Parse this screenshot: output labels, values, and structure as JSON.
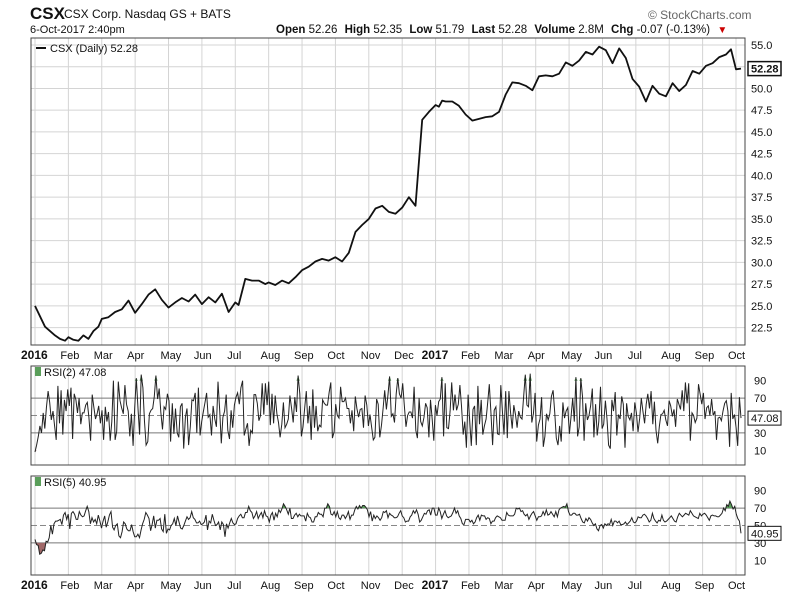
{
  "header": {
    "symbol": "CSX",
    "company": "CSX Corp. Nasdaq GS + BATS",
    "datetime": "6-Oct-2017 2:40pm",
    "brand": "© StockCharts.com",
    "quote": {
      "open_label": "Open",
      "open": "52.26",
      "high_label": "High",
      "high": "52.35",
      "low_label": "Low",
      "low": "51.79",
      "last_label": "Last",
      "last": "52.28",
      "volume_label": "Volume",
      "volume": "2.8M",
      "chg_label": "Chg",
      "chg": "-0.07 (-0.13%)"
    }
  },
  "colors": {
    "overbought": "#5a9e5a",
    "oversold": "#a06868",
    "line": "#111111",
    "grid": "#d4d4d4",
    "down": "#cc0000"
  },
  "chart_data": [
    {
      "type": "line",
      "legend": "CSX (Daily) 52.28",
      "last_label": "52.28",
      "ylim": [
        20.5,
        55.8
      ],
      "yticks": [
        22.5,
        25.0,
        27.5,
        30.0,
        32.5,
        35.0,
        37.5,
        40.0,
        42.5,
        45.0,
        47.5,
        50.0,
        52.5,
        55.0
      ],
      "x_months": [
        "2016",
        "Feb",
        "Mar",
        "Apr",
        "May",
        "Jun",
        "Jul",
        "Aug",
        "Sep",
        "Oct",
        "Nov",
        "Dec",
        "2017",
        "Feb",
        "Mar",
        "Apr",
        "May",
        "Jun",
        "Jul",
        "Aug",
        "Sep",
        "Oct"
      ],
      "x_month_index": [
        0,
        1,
        2,
        3,
        4,
        5,
        6,
        7,
        8,
        9,
        10,
        11,
        12,
        13,
        14,
        15,
        16,
        17,
        18,
        19,
        20,
        21
      ],
      "x": [
        0,
        0.15,
        0.3,
        0.45,
        0.6,
        0.75,
        0.9,
        1.0,
        1.15,
        1.3,
        1.45,
        1.6,
        1.75,
        1.9,
        2.0,
        2.2,
        2.4,
        2.6,
        2.8,
        3.0,
        3.2,
        3.4,
        3.6,
        3.8,
        4.0,
        4.2,
        4.4,
        4.6,
        4.8,
        5.0,
        5.2,
        5.4,
        5.6,
        5.8,
        6.0,
        6.1,
        6.3,
        6.5,
        6.7,
        6.9,
        7.0,
        7.2,
        7.4,
        7.6,
        7.8,
        8.0,
        8.2,
        8.4,
        8.6,
        8.8,
        9.0,
        9.2,
        9.4,
        9.6,
        9.8,
        10.0,
        10.2,
        10.4,
        10.6,
        10.8,
        11.0,
        11.2,
        11.4,
        11.6,
        11.8,
        12.0,
        12.1,
        12.2,
        12.3,
        12.5,
        12.7,
        12.9,
        13.1,
        13.3,
        13.5,
        13.7,
        13.9,
        14.1,
        14.3,
        14.5,
        14.7,
        14.9,
        15.1,
        15.3,
        15.5,
        15.7,
        15.9,
        16.1,
        16.3,
        16.5,
        16.7,
        16.9,
        17.1,
        17.3,
        17.5,
        17.7,
        17.9,
        18.1,
        18.3,
        18.5,
        18.7,
        18.9,
        19.1,
        19.3,
        19.5,
        19.7,
        19.9,
        20.1,
        20.3,
        20.5,
        20.7,
        20.85,
        21.0,
        21.15
      ],
      "values": [
        25.0,
        23.8,
        22.6,
        22.1,
        21.6,
        21.2,
        21.0,
        21.4,
        21.1,
        21.0,
        21.6,
        21.2,
        22.1,
        22.6,
        23.5,
        23.7,
        24.3,
        24.6,
        25.6,
        24.2,
        25.2,
        26.3,
        26.9,
        25.7,
        24.8,
        25.4,
        25.9,
        25.5,
        26.3,
        25.2,
        26.0,
        25.4,
        26.4,
        24.3,
        25.4,
        25.1,
        28.1,
        27.9,
        27.9,
        27.5,
        27.7,
        27.4,
        27.9,
        27.6,
        28.3,
        29.1,
        29.5,
        30.1,
        30.4,
        30.2,
        30.6,
        30.1,
        31.1,
        33.5,
        34.3,
        35.0,
        36.2,
        36.5,
        35.8,
        35.6,
        36.3,
        37.5,
        36.5,
        46.4,
        47.3,
        48.1,
        47.9,
        48.6,
        48.5,
        48.5,
        48.0,
        47.0,
        46.3,
        46.5,
        46.7,
        46.8,
        47.3,
        49.3,
        50.7,
        50.6,
        50.3,
        49.8,
        51.4,
        51.5,
        51.4,
        51.7,
        53.0,
        52.6,
        53.2,
        54.2,
        53.9,
        54.8,
        54.4,
        52.9,
        54.6,
        53.5,
        51.1,
        50.2,
        48.5,
        50.3,
        49.4,
        49.1,
        50.6,
        49.7,
        50.4,
        52.0,
        51.7,
        52.6,
        52.9,
        53.6,
        53.9,
        54.5,
        52.2,
        52.28
      ]
    },
    {
      "type": "line",
      "legend": "RSI(2) 47.08",
      "last_label": "47.08",
      "ylim": [
        0,
        100
      ],
      "overbought": 90,
      "oversold": 10,
      "yticks": [
        90,
        70,
        50,
        30,
        10
      ],
      "guides": [
        70,
        50,
        30
      ],
      "n_points": 441,
      "x_range": [
        0,
        21.15
      ],
      "values": [
        8,
        16,
        26,
        38,
        30,
        53,
        35,
        59,
        78,
        65,
        45,
        55,
        38,
        22,
        84,
        41,
        79,
        28,
        68,
        55,
        80,
        61,
        82,
        23,
        75,
        68,
        53,
        70,
        40,
        53,
        53,
        62,
        65,
        48,
        21,
        74,
        60,
        46,
        52,
        61,
        41,
        56,
        22,
        60,
        43,
        54,
        21,
        43,
        90,
        22,
        32,
        89,
        67,
        59,
        52,
        85,
        63,
        55,
        26,
        52,
        15,
        59,
        93,
        58,
        28,
        97,
        82,
        43,
        16,
        20,
        52,
        56,
        58,
        72,
        96,
        69,
        81,
        54,
        34,
        60,
        57,
        75,
        67,
        20,
        64,
        29,
        58,
        30,
        25,
        60,
        64,
        12,
        48,
        58,
        16,
        37,
        68,
        67,
        76,
        30,
        82,
        27,
        43,
        54,
        65,
        76,
        48,
        51,
        27,
        61,
        46,
        37,
        89,
        56,
        18,
        48,
        55,
        74,
        33,
        23,
        56,
        36,
        62,
        71,
        76,
        63,
        82,
        90,
        27,
        34,
        41,
        15,
        33,
        30,
        74,
        74,
        64,
        44,
        50,
        87,
        51,
        87,
        62,
        89,
        39,
        75,
        41,
        73,
        52,
        42,
        25,
        40,
        65,
        36,
        40,
        46,
        73,
        58,
        42,
        71,
        54,
        96,
        75,
        26,
        37,
        59,
        78,
        41,
        61,
        22,
        80,
        36,
        61,
        32,
        39,
        37,
        68,
        64,
        62,
        62,
        77,
        88,
        24,
        31,
        63,
        50,
        47,
        83,
        66,
        66,
        70,
        58,
        58,
        41,
        56,
        32,
        72,
        58,
        48,
        57,
        58,
        36,
        73,
        62,
        38,
        51,
        36,
        22,
        25,
        69,
        63,
        25,
        39,
        58,
        79,
        57,
        74,
        95,
        49,
        52,
        42,
        75,
        93,
        75,
        70,
        87,
        62,
        37,
        50,
        54,
        54,
        47,
        83,
        33,
        24,
        70,
        43,
        38,
        48,
        64,
        59,
        25,
        68,
        47,
        21,
        62,
        50,
        66,
        69,
        94,
        26,
        87,
        36,
        35,
        55,
        88,
        56,
        74,
        56,
        63,
        85,
        61,
        28,
        43,
        13,
        74,
        44,
        15,
        57,
        61,
        16,
        84,
        40,
        68,
        28,
        38,
        46,
        65,
        86,
        52,
        16,
        56,
        60,
        29,
        28,
        85,
        55,
        28,
        78,
        24,
        78,
        53,
        35,
        62,
        51,
        36,
        55,
        48,
        46,
        71,
        97,
        62,
        60,
        98,
        42,
        52,
        76,
        20,
        39,
        46,
        71,
        14,
        26,
        52,
        45,
        52,
        72,
        79,
        54,
        24,
        16,
        38,
        20,
        65,
        47,
        55,
        59,
        29,
        48,
        70,
        43,
        94,
        26,
        37,
        93,
        72,
        21,
        64,
        45,
        50,
        61,
        81,
        25,
        63,
        27,
        43,
        83,
        35,
        40,
        67,
        46,
        16,
        12,
        68,
        55,
        77,
        27,
        51,
        46,
        72,
        63,
        13,
        64,
        49,
        45,
        53,
        32,
        65,
        53,
        31,
        47,
        70,
        55,
        41,
        63,
        75,
        58,
        78,
        40,
        66,
        33,
        18,
        37,
        51,
        52,
        56,
        45,
        38,
        67,
        61,
        49,
        57,
        37,
        69,
        63,
        57,
        79,
        55,
        88,
        64,
        87,
        21,
        53,
        50,
        42,
        47,
        86,
        75,
        63,
        76,
        46,
        59,
        61,
        50,
        69,
        50,
        55,
        22,
        47,
        48,
        44,
        55,
        64,
        67,
        55,
        14,
        76,
        46,
        51,
        36,
        15,
        71,
        47
      ]
    },
    {
      "type": "line",
      "legend": "RSI(5) 40.95",
      "last_label": "40.95",
      "ylim": [
        0,
        100
      ],
      "overbought": 70,
      "oversold": 30,
      "yticks": [
        90,
        70,
        50,
        30,
        10
      ],
      "guides": [
        70,
        50,
        30
      ],
      "n_points": 441,
      "x_range": [
        0,
        21.15
      ],
      "values": [
        34,
        28,
        27,
        17,
        18,
        22,
        21,
        32,
        31,
        36,
        50,
        40,
        52,
        55,
        55,
        56,
        57,
        51,
        62,
        65,
        57,
        63,
        46,
        64,
        66,
        63,
        57,
        57,
        66,
        62,
        60,
        61,
        67,
        72,
        66,
        52,
        59,
        54,
        57,
        52,
        62,
        55,
        47,
        55,
        61,
        48,
        54,
        62,
        66,
        48,
        45,
        50,
        52,
        38,
        36,
        43,
        54,
        52,
        46,
        44,
        44,
        51,
        43,
        37,
        37,
        40,
        36,
        45,
        52,
        57,
        65,
        62,
        58,
        44,
        51,
        61,
        47,
        56,
        56,
        58,
        46,
        43,
        63,
        41,
        46,
        45,
        50,
        52,
        58,
        50,
        61,
        54,
        47,
        46,
        50,
        55,
        60,
        57,
        59,
        66,
        59,
        57,
        53,
        53,
        55,
        51,
        52,
        54,
        62,
        45,
        55,
        53,
        63,
        56,
        50,
        51,
        54,
        45,
        54,
        51,
        37,
        52,
        47,
        53,
        58,
        53,
        51,
        52,
        58,
        61,
        63,
        59,
        59,
        65,
        65,
        72,
        67,
        65,
        58,
        61,
        66,
        58,
        62,
        65,
        59,
        67,
        61,
        60,
        54,
        62,
        65,
        56,
        64,
        60,
        68,
        65,
        69,
        75,
        72,
        68,
        63,
        70,
        58,
        58,
        62,
        64,
        60,
        63,
        61,
        61,
        61,
        55,
        64,
        60,
        59,
        54,
        54,
        60,
        60,
        65,
        63,
        63,
        60,
        70,
        70,
        75,
        72,
        63,
        62,
        66,
        60,
        66,
        59,
        57,
        62,
        62,
        58,
        61,
        66,
        57,
        62,
        62,
        68,
        72,
        69,
        73,
        70,
        73,
        73,
        71,
        68,
        60,
        66,
        55,
        62,
        58,
        61,
        59,
        56,
        59,
        66,
        65,
        67,
        59,
        64,
        62,
        61,
        59,
        59,
        60,
        64,
        67,
        61,
        59,
        54,
        55,
        55,
        60,
        62,
        67,
        64,
        68,
        63,
        54,
        56,
        60,
        64,
        63,
        67,
        68,
        62,
        70,
        70,
        62,
        62,
        70,
        66,
        58,
        63,
        67,
        61,
        59,
        60,
        61,
        65,
        70,
        64,
        67,
        61,
        58,
        52,
        51,
        57,
        57,
        57,
        54,
        56,
        52,
        54,
        59,
        62,
        56,
        62,
        61,
        61,
        57,
        59,
        58,
        52,
        55,
        55,
        59,
        61,
        60,
        59,
        56,
        56,
        56,
        65,
        62,
        61,
        61,
        61,
        63,
        70,
        69,
        70,
        66,
        67,
        63,
        61,
        63,
        57,
        61,
        64,
        66,
        61,
        56,
        60,
        60,
        61,
        66,
        62,
        68,
        62,
        63,
        66,
        63,
        60,
        66,
        60,
        68,
        70,
        71,
        72,
        71,
        75,
        66,
        62,
        62,
        64,
        64,
        62,
        62,
        63,
        58,
        54,
        53,
        58,
        55,
        59,
        57,
        53,
        50,
        52,
        46,
        44,
        50,
        51,
        47,
        52,
        50,
        52,
        51,
        57,
        50,
        55,
        55,
        53,
        55,
        51,
        51,
        52,
        54,
        51,
        53,
        55,
        59,
        54,
        53,
        55,
        60,
        59,
        59,
        62,
        63,
        61,
        58,
        54,
        56,
        64,
        58,
        55,
        53,
        56,
        55,
        62,
        56,
        54,
        55,
        57,
        59,
        61,
        58,
        55,
        54,
        60,
        64,
        62,
        60,
        62,
        64,
        63,
        62,
        67,
        64,
        61,
        60,
        59,
        58,
        64,
        61,
        63,
        64,
        62,
        59,
        56,
        61,
        62,
        61,
        61,
        60,
        60,
        62,
        64,
        70,
        67,
        74,
        72,
        78,
        74,
        69,
        72,
        63,
        58,
        55,
        41
      ]
    }
  ]
}
